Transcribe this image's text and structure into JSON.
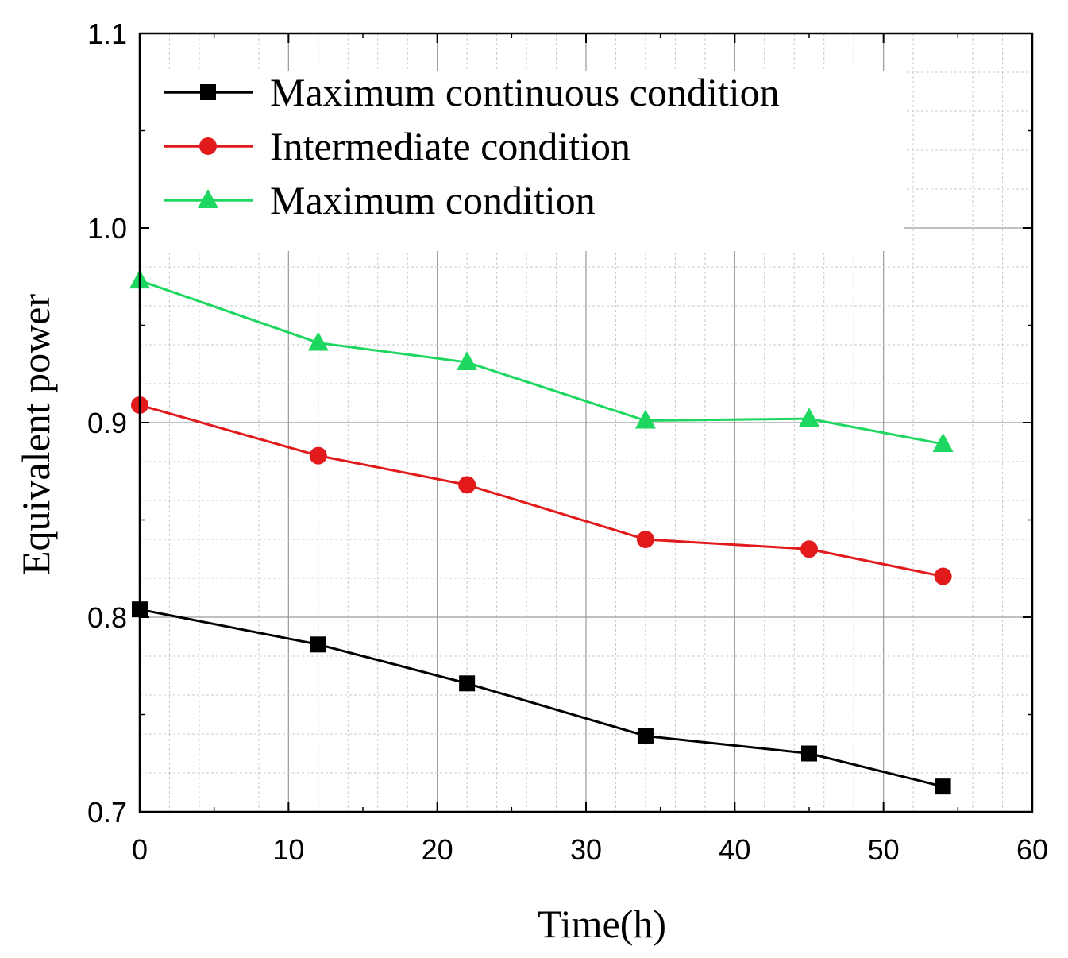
{
  "chart_data": {
    "type": "line",
    "title": "",
    "xlabel": "Time(h)",
    "ylabel": "Equivalent power",
    "xlim": [
      0,
      60
    ],
    "ylim": [
      0.7,
      1.1
    ],
    "xticks": [
      0,
      10,
      20,
      30,
      40,
      50,
      60
    ],
    "xtick_labels": [
      "0",
      "10",
      "20",
      "30",
      "40",
      "50",
      "60"
    ],
    "yticks": [
      0.7,
      0.8,
      0.9,
      1.0,
      1.1
    ],
    "ytick_labels": [
      "0.7",
      "0.8",
      "0.9",
      "1.0",
      "1.1"
    ],
    "grid": true,
    "legend_position": "top-left",
    "x": [
      0,
      12,
      22,
      34,
      45,
      54
    ],
    "series": [
      {
        "name": "Maximum continuous condition",
        "values": [
          0.804,
          0.786,
          0.766,
          0.739,
          0.73,
          0.713
        ],
        "color": "#000000",
        "marker": "square"
      },
      {
        "name": "Intermediate condition",
        "values": [
          0.909,
          0.883,
          0.868,
          0.84,
          0.835,
          0.821
        ],
        "color": "#e31a1c",
        "marker": "circle"
      },
      {
        "name": "Maximum condition",
        "values": [
          0.973,
          0.941,
          0.931,
          0.901,
          0.902,
          0.889
        ],
        "color": "#1ed760",
        "marker": "triangle"
      }
    ]
  }
}
